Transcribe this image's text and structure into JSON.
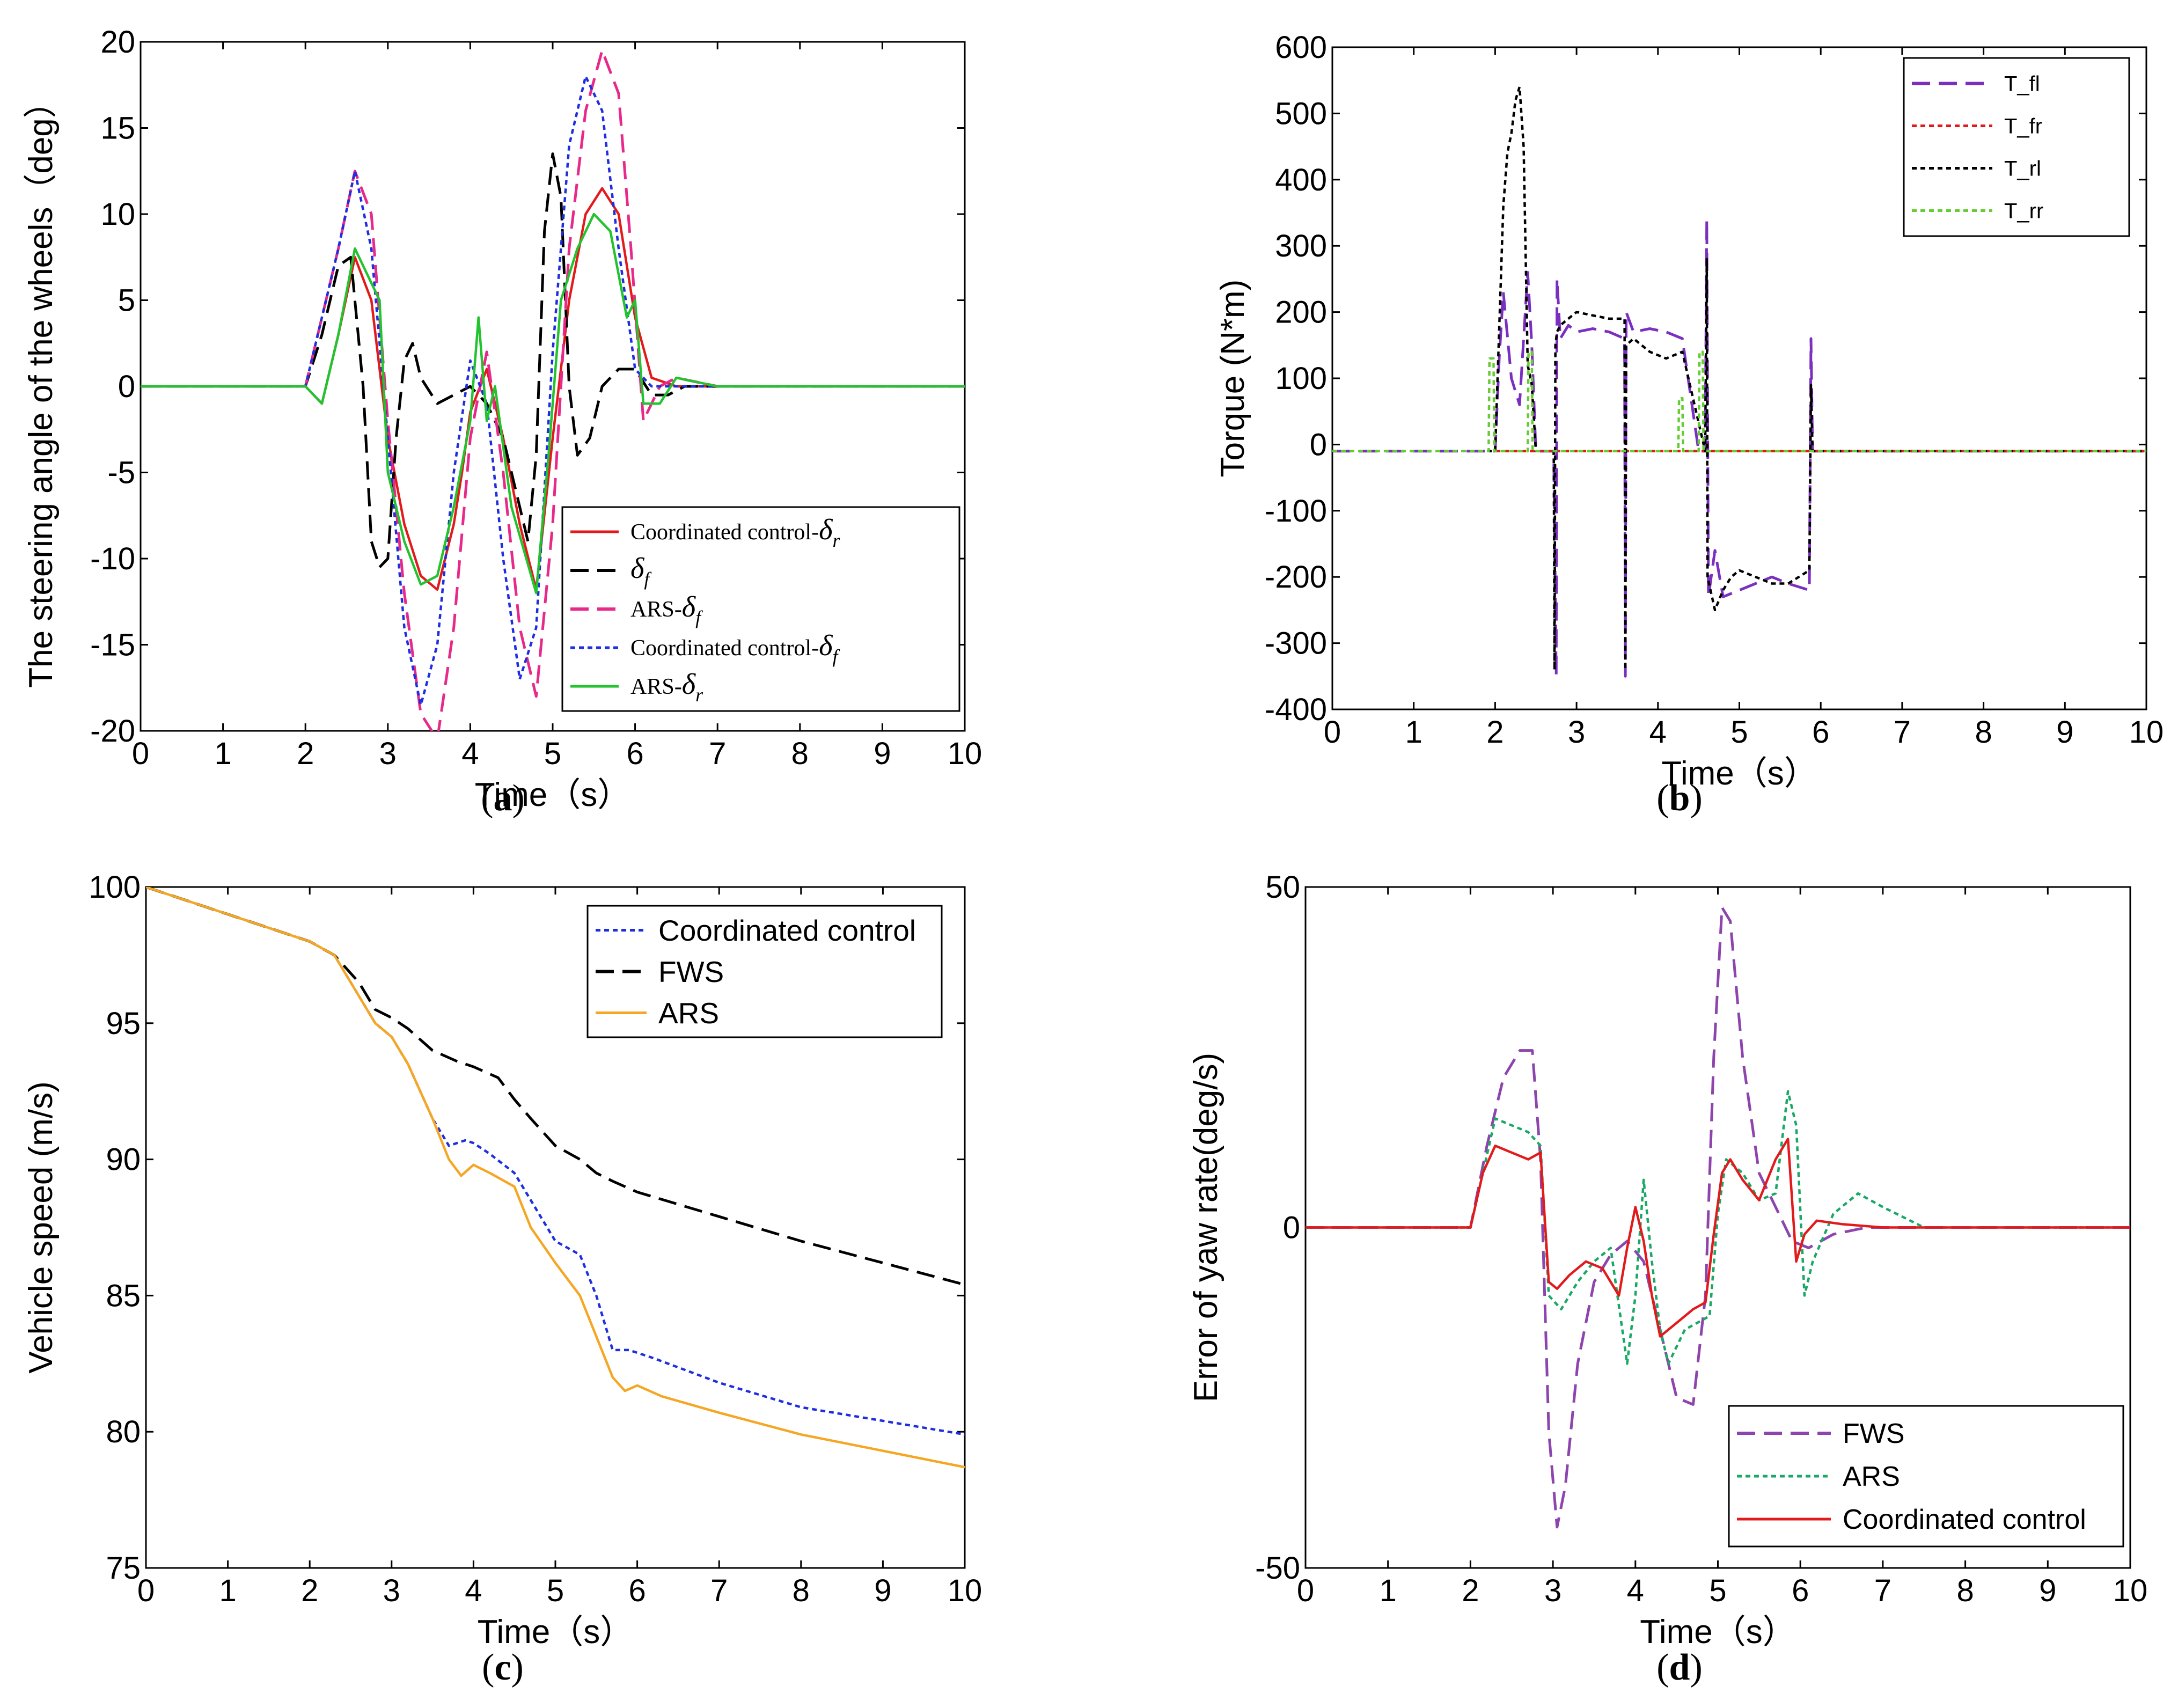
{
  "chart_data": [
    {
      "id": "a",
      "type": "line",
      "caption_letter": "a",
      "xlabel": "Time（s）",
      "ylabel": "The steering angle of the wheels（deg）",
      "xlim": [
        0,
        10
      ],
      "ylim": [
        -20,
        20
      ],
      "xticks": [
        "0",
        "1",
        "2",
        "3",
        "4",
        "5",
        "6",
        "7",
        "8",
        "9",
        "10"
      ],
      "yticks": [
        "-20",
        "-15",
        "-10",
        "-5",
        "0",
        "5",
        "10",
        "15",
        "20"
      ],
      "legend_position": "bottom-right",
      "series": [
        {
          "name": "Coordinated control-δr",
          "legend_prefix": "Coordinated control-",
          "legend_sym": "δ",
          "legend_sub": "r",
          "color": "#e31a1c",
          "dash": "solid",
          "x": [
            0,
            2,
            2.2,
            2.4,
            2.6,
            2.8,
            3,
            3.2,
            3.4,
            3.6,
            3.8,
            3.9,
            4,
            4.2,
            4.4,
            4.6,
            4.8,
            5,
            5.2,
            5.4,
            5.6,
            5.8,
            6,
            6.2,
            6.5,
            7,
            10
          ],
          "y": [
            0,
            0,
            -1,
            3,
            7.5,
            5,
            -3,
            -8,
            -11,
            -11.8,
            -8,
            -5,
            -1.5,
            1,
            -3,
            -8,
            -11.8,
            -3,
            5,
            10,
            11.5,
            10,
            4,
            0.5,
            0,
            0,
            0
          ]
        },
        {
          "name": "δf",
          "legend_prefix": "",
          "legend_sym": "δ",
          "legend_sub": "f",
          "color": "#000000",
          "dash": "long",
          "x": [
            0,
            2,
            2.2,
            2.4,
            2.55,
            2.7,
            2.8,
            2.9,
            3,
            3.1,
            3.2,
            3.3,
            3.4,
            3.6,
            3.8,
            4,
            4.2,
            4.4,
            4.6,
            4.7,
            4.8,
            4.9,
            5,
            5.1,
            5.2,
            5.3,
            5.45,
            5.6,
            5.8,
            6,
            6.2,
            6.4,
            6.6,
            7,
            10
          ],
          "y": [
            0,
            0,
            3,
            7,
            7.5,
            0,
            -9,
            -10.5,
            -10,
            -3,
            1.5,
            2.5,
            0.5,
            -1,
            -0.5,
            0,
            -1,
            -3,
            -7,
            -9,
            -4,
            9,
            13.5,
            11,
            0,
            -4,
            -3,
            0,
            1,
            1,
            -0.5,
            -0.5,
            0,
            0,
            0
          ]
        },
        {
          "name": "ARS-δf",
          "legend_prefix": "ARS-",
          "legend_sym": "δ",
          "legend_sub": "f",
          "color": "#e7298a",
          "dash": "long",
          "x": [
            0,
            2,
            2.2,
            2.4,
            2.6,
            2.8,
            3,
            3.2,
            3.4,
            3.6,
            3.8,
            4,
            4.2,
            4.4,
            4.6,
            4.8,
            5,
            5.2,
            5.4,
            5.6,
            5.8,
            5.95,
            6.1,
            6.3,
            6.5,
            7,
            10
          ],
          "y": [
            0,
            0,
            4,
            8,
            12.5,
            10,
            -2,
            -12,
            -19,
            -20.5,
            -14,
            -3,
            2,
            -5,
            -14,
            -18,
            -8,
            8,
            16,
            19.5,
            17,
            8,
            -2,
            0,
            0.5,
            0,
            0
          ]
        },
        {
          "name": "Coordinated control-δf",
          "legend_prefix": "Coordinated control-",
          "legend_sym": "δ",
          "legend_sub": "f",
          "color": "#1f2fe0",
          "dash": "dot",
          "x": [
            0,
            2,
            2.2,
            2.4,
            2.6,
            2.8,
            3,
            3.2,
            3.4,
            3.6,
            3.8,
            4,
            4.2,
            4.4,
            4.6,
            4.8,
            5,
            5.2,
            5.4,
            5.6,
            5.8,
            6,
            6.2,
            6.5,
            7,
            10
          ],
          "y": [
            0,
            0,
            4,
            8,
            12.5,
            8,
            -3,
            -14,
            -18.5,
            -15,
            -5,
            1.5,
            -1,
            -10,
            -17,
            -14,
            2,
            14,
            18,
            16,
            8,
            1,
            0,
            0,
            0,
            0
          ]
        },
        {
          "name": "ARS-δr",
          "legend_prefix": "ARS-",
          "legend_sym": "δ",
          "legend_sub": "r",
          "color": "#22c32e",
          "dash": "solid",
          "x": [
            0,
            2,
            2.2,
            2.4,
            2.6,
            2.8,
            2.9,
            3,
            3.2,
            3.4,
            3.6,
            3.8,
            4,
            4.1,
            4.2,
            4.3,
            4.5,
            4.8,
            4.95,
            5.1,
            5.3,
            5.5,
            5.7,
            5.9,
            6,
            6.1,
            6.3,
            6.5,
            7,
            10
          ],
          "y": [
            0,
            0,
            -1,
            3,
            8,
            6,
            5,
            -5,
            -9,
            -11.5,
            -11,
            -7,
            -2,
            4,
            -2,
            0,
            -7,
            -12,
            -4,
            5,
            8,
            10,
            9,
            4,
            5,
            -1,
            -1,
            0.5,
            0,
            0
          ]
        }
      ]
    },
    {
      "id": "b",
      "type": "line",
      "caption_letter": "b",
      "xlabel": "Time（s）",
      "ylabel": "Torque (N*m)",
      "xlim": [
        0,
        10
      ],
      "ylim": [
        -400,
        600
      ],
      "xticks": [
        "0",
        "1",
        "2",
        "3",
        "4",
        "5",
        "6",
        "7",
        "8",
        "9",
        "10"
      ],
      "yticks": [
        "-400",
        "-300",
        "-200",
        "-100",
        "0",
        "100",
        "200",
        "300",
        "400",
        "500",
        "600"
      ],
      "legend_position": "top-right",
      "series": [
        {
          "name": "T_fl",
          "color": "#7b2fbf",
          "dash": "long",
          "x": [
            0,
            2.0,
            2.05,
            2.1,
            2.2,
            2.3,
            2.4,
            2.45,
            2.5,
            2.55,
            2.72,
            2.75,
            2.76,
            2.8,
            2.9,
            3.0,
            3.2,
            3.4,
            3.59,
            3.6,
            3.61,
            3.7,
            3.9,
            4.1,
            4.3,
            4.5,
            4.58,
            4.6,
            4.62,
            4.7,
            4.8,
            5.0,
            5.2,
            5.4,
            5.6,
            5.86,
            5.88,
            5.9,
            10
          ],
          "y": [
            -10,
            -10,
            130,
            230,
            100,
            60,
            260,
            150,
            -10,
            -10,
            -10,
            -350,
            250,
            160,
            180,
            170,
            175,
            170,
            160,
            -350,
            200,
            170,
            175,
            170,
            160,
            -10,
            -10,
            340,
            -230,
            -160,
            -230,
            -220,
            -210,
            -200,
            -210,
            -220,
            160,
            -10,
            -10
          ]
        },
        {
          "name": "T_fr",
          "color": "#e31a1c",
          "dash": "dot",
          "x": [
            0,
            10
          ],
          "y": [
            -10,
            -10
          ]
        },
        {
          "name": "T_rl",
          "color": "#000000",
          "dash": "dot",
          "x": [
            0,
            2.0,
            2.1,
            2.15,
            2.2,
            2.25,
            2.3,
            2.35,
            2.4,
            2.45,
            2.5,
            2.72,
            2.73,
            2.74,
            2.76,
            2.8,
            2.9,
            3.0,
            3.2,
            3.4,
            3.59,
            3.6,
            3.61,
            3.7,
            3.9,
            4.1,
            4.3,
            4.58,
            4.6,
            4.61,
            4.7,
            4.8,
            4.9,
            5.0,
            5.2,
            5.4,
            5.6,
            5.86,
            5.88,
            5.9,
            10
          ],
          "y": [
            -10,
            -10,
            360,
            440,
            470,
            520,
            540,
            450,
            120,
            90,
            -10,
            -10,
            -340,
            150,
            170,
            180,
            190,
            200,
            195,
            190,
            190,
            -340,
            150,
            160,
            140,
            130,
            140,
            -10,
            280,
            -200,
            -250,
            -220,
            -200,
            -190,
            -200,
            -210,
            -210,
            -190,
            90,
            -10,
            -10
          ]
        },
        {
          "name": "T_rr",
          "color": "#66cc33",
          "dash": "dot",
          "x": [
            0,
            1.92,
            1.93,
            1.98,
            1.99,
            2.0,
            2.4,
            2.41,
            2.45,
            2.46,
            4.25,
            4.26,
            4.3,
            4.31,
            4.5,
            4.51,
            4.55,
            4.56,
            10
          ],
          "y": [
            -10,
            -10,
            130,
            130,
            -10,
            -10,
            -10,
            140,
            140,
            -10,
            -10,
            70,
            70,
            -10,
            -10,
            140,
            140,
            -10,
            -10
          ]
        }
      ]
    },
    {
      "id": "c",
      "type": "line",
      "caption_letter": "c",
      "xlabel": "Time（s）",
      "ylabel": "Vehicle speed (m/s)",
      "xlim": [
        0,
        10
      ],
      "ylim": [
        75,
        100
      ],
      "xticks": [
        "0",
        "1",
        "2",
        "3",
        "4",
        "5",
        "6",
        "7",
        "8",
        "9",
        "10"
      ],
      "yticks": [
        "75",
        "80",
        "85",
        "90",
        "95",
        "100"
      ],
      "legend_position": "top-right",
      "series": [
        {
          "name": "Coordinated control",
          "color": "#1f2fe0",
          "dash": "dot",
          "x": [
            0,
            1,
            2,
            2.3,
            2.6,
            2.8,
            3.0,
            3.2,
            3.5,
            3.7,
            3.9,
            4.0,
            4.2,
            4.5,
            4.7,
            5.0,
            5.3,
            5.5,
            5.7,
            5.9,
            6.2,
            7,
            8,
            9,
            10
          ],
          "y": [
            100,
            99.0,
            98,
            97.5,
            96,
            95,
            94.5,
            93.5,
            91.5,
            90.5,
            90.7,
            90.6,
            90.2,
            89.5,
            88.5,
            87,
            86.5,
            85,
            83,
            83,
            82.7,
            81.8,
            80.9,
            80.4,
            79.9
          ]
        },
        {
          "name": "FWS",
          "color": "#000000",
          "dash": "long",
          "x": [
            0,
            1,
            2,
            2.3,
            2.6,
            2.8,
            3.0,
            3.2,
            3.5,
            3.8,
            4.0,
            4.3,
            4.5,
            4.7,
            5.0,
            5.3,
            5.5,
            5.7,
            6,
            7,
            8,
            9,
            10
          ],
          "y": [
            100,
            99.0,
            98,
            97.5,
            96.5,
            95.5,
            95.2,
            94.8,
            94,
            93.6,
            93.4,
            93,
            92.2,
            91.5,
            90.5,
            90,
            89.5,
            89.2,
            88.8,
            87.9,
            87.0,
            86.2,
            85.4
          ]
        },
        {
          "name": "ARS",
          "color": "#f5a623",
          "dash": "solid",
          "x": [
            0,
            1,
            2,
            2.3,
            2.6,
            2.8,
            3.0,
            3.2,
            3.5,
            3.7,
            3.85,
            4.0,
            4.2,
            4.5,
            4.7,
            5.0,
            5.3,
            5.5,
            5.7,
            5.85,
            6.0,
            6.3,
            7,
            8,
            9,
            10
          ],
          "y": [
            100,
            99.0,
            98,
            97.5,
            96,
            95,
            94.5,
            93.5,
            91.5,
            90,
            89.4,
            89.8,
            89.5,
            89,
            87.5,
            86.2,
            85,
            83.5,
            82,
            81.5,
            81.7,
            81.3,
            80.7,
            79.9,
            79.3,
            78.7
          ]
        }
      ]
    },
    {
      "id": "d",
      "type": "line",
      "caption_letter": "d",
      "xlabel": "Time（s）",
      "ylabel": "Error of yaw rate(deg/s)",
      "xlim": [
        0,
        10
      ],
      "ylim": [
        -50,
        50
      ],
      "xticks": [
        "0",
        "1",
        "2",
        "3",
        "4",
        "5",
        "6",
        "7",
        "8",
        "9",
        "10"
      ],
      "yticks": [
        "-50",
        "0",
        "50"
      ],
      "legend_position": "bottom-right",
      "series": [
        {
          "name": "FWS",
          "color": "#8e44ad",
          "dash": "long",
          "x": [
            0,
            2,
            2.2,
            2.4,
            2.6,
            2.75,
            2.85,
            2.95,
            3.05,
            3.15,
            3.3,
            3.5,
            3.7,
            3.9,
            4.1,
            4.3,
            4.5,
            4.7,
            4.85,
            4.95,
            5.05,
            5.15,
            5.3,
            5.5,
            5.7,
            5.9,
            6.1,
            6.4,
            6.8,
            7.5,
            10
          ],
          "y": [
            0,
            0,
            12,
            22,
            26,
            26,
            10,
            -30,
            -44,
            -38,
            -20,
            -8,
            -4,
            -2,
            -5,
            -15,
            -25,
            -26,
            -10,
            25,
            47,
            45,
            25,
            8,
            3,
            -2,
            -3,
            -1,
            0,
            0,
            0
          ]
        },
        {
          "name": "ARS",
          "color": "#1aa866",
          "dash": "dot",
          "x": [
            0,
            2,
            2.15,
            2.3,
            2.5,
            2.7,
            2.85,
            2.95,
            3.1,
            3.3,
            3.5,
            3.7,
            3.9,
            4.0,
            4.1,
            4.2,
            4.3,
            4.4,
            4.6,
            4.75,
            4.9,
            5.0,
            5.1,
            5.3,
            5.5,
            5.7,
            5.85,
            5.95,
            6.05,
            6.15,
            6.4,
            6.7,
            7,
            7.5,
            10
          ],
          "y": [
            0,
            0,
            8,
            16,
            15,
            14,
            12,
            -10,
            -12,
            -8,
            -5,
            -3,
            -20,
            -10,
            7,
            -5,
            -15,
            -20,
            -15,
            -14,
            -13,
            2,
            10,
            8,
            4,
            5,
            20,
            15,
            -10,
            -5,
            2,
            5,
            3,
            0,
            0
          ]
        },
        {
          "name": "Coordinated control",
          "color": "#e31a1c",
          "dash": "solid",
          "x": [
            0,
            2,
            2.15,
            2.3,
            2.5,
            2.7,
            2.85,
            2.95,
            3.05,
            3.2,
            3.4,
            3.6,
            3.8,
            3.9,
            4.0,
            4.1,
            4.2,
            4.3,
            4.5,
            4.7,
            4.85,
            4.95,
            5.05,
            5.15,
            5.3,
            5.5,
            5.7,
            5.85,
            5.95,
            6.05,
            6.2,
            6.5,
            7,
            7.5,
            10
          ],
          "y": [
            0,
            0,
            8,
            12,
            11,
            10,
            11,
            -8,
            -9,
            -7,
            -5,
            -6,
            -10,
            -3,
            3,
            -2,
            -10,
            -16,
            -14,
            -12,
            -11,
            -1,
            8,
            10,
            7,
            4,
            10,
            13,
            -5,
            -1,
            1,
            0.5,
            0,
            0,
            0
          ]
        }
      ]
    }
  ]
}
